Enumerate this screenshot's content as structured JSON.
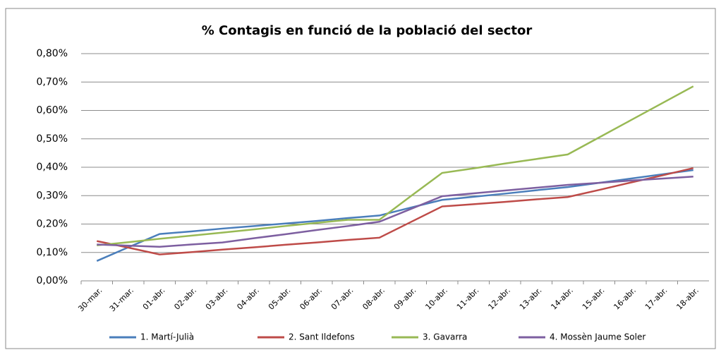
{
  "chart_data": {
    "type": "line",
    "title": "% Contagis en funció de la població del sector",
    "categories": [
      "30-mar.",
      "31-mar.",
      "01-abr.",
      "02-abr.",
      "03-abr.",
      "04-abr.",
      "05-abr.",
      "06-abr.",
      "07-abr.",
      "08-abr.",
      "09-abr.",
      "10-abr.",
      "11-abr.",
      "12-abr.",
      "13-abr.",
      "14-abr.",
      "15-abr.",
      "16-abr.",
      "17-abr.",
      "18-abr."
    ],
    "series": [
      {
        "name": "1. Martí-Julià",
        "color": "#4a7ebb",
        "values": [
          0.07,
          0.118,
          0.165,
          0.174,
          0.184,
          0.193,
          0.202,
          0.211,
          0.221,
          0.23,
          0.258,
          0.285,
          0.296,
          0.307,
          0.319,
          0.33,
          0.345,
          0.36,
          0.375,
          0.39
        ]
      },
      {
        "name": "2. Sant Ildefons",
        "color": "#be4b48",
        "values": [
          0.14,
          0.117,
          0.093,
          0.101,
          0.11,
          0.118,
          0.127,
          0.135,
          0.144,
          0.152,
          0.207,
          0.262,
          0.27,
          0.278,
          0.287,
          0.295,
          0.32,
          0.346,
          0.371,
          0.397
        ]
      },
      {
        "name": "3. Gavarra",
        "color": "#98b954",
        "values": [
          0.125,
          0.136,
          0.148,
          0.159,
          0.17,
          0.181,
          0.193,
          0.204,
          0.215,
          0.215,
          0.298,
          0.38,
          0.396,
          0.413,
          0.429,
          0.445,
          0.505,
          0.565,
          0.625,
          0.685
        ]
      },
      {
        "name": "4. Mossèn Jaume Soler",
        "color": "#7d5fa0",
        "values": [
          0.128,
          0.124,
          0.12,
          0.128,
          0.135,
          0.15,
          0.164,
          0.179,
          0.193,
          0.208,
          0.253,
          0.298,
          0.308,
          0.318,
          0.328,
          0.338,
          0.345,
          0.353,
          0.36,
          0.367
        ]
      }
    ],
    "ylim": [
      0,
      0.8
    ],
    "yticks": [
      {
        "value": 0,
        "label": "0,00%"
      },
      {
        "value": 0.1,
        "label": "0,10%"
      },
      {
        "value": 0.2,
        "label": "0,20%"
      },
      {
        "value": 0.3,
        "label": "0,30%"
      },
      {
        "value": 0.4,
        "label": "0,40%"
      },
      {
        "value": 0.5,
        "label": "0,50%"
      },
      {
        "value": 0.6,
        "label": "0,60%"
      },
      {
        "value": 0.7,
        "label": "0,70%"
      },
      {
        "value": 0.8,
        "label": "0,80%"
      }
    ],
    "grid": true,
    "legend": "bottom"
  }
}
